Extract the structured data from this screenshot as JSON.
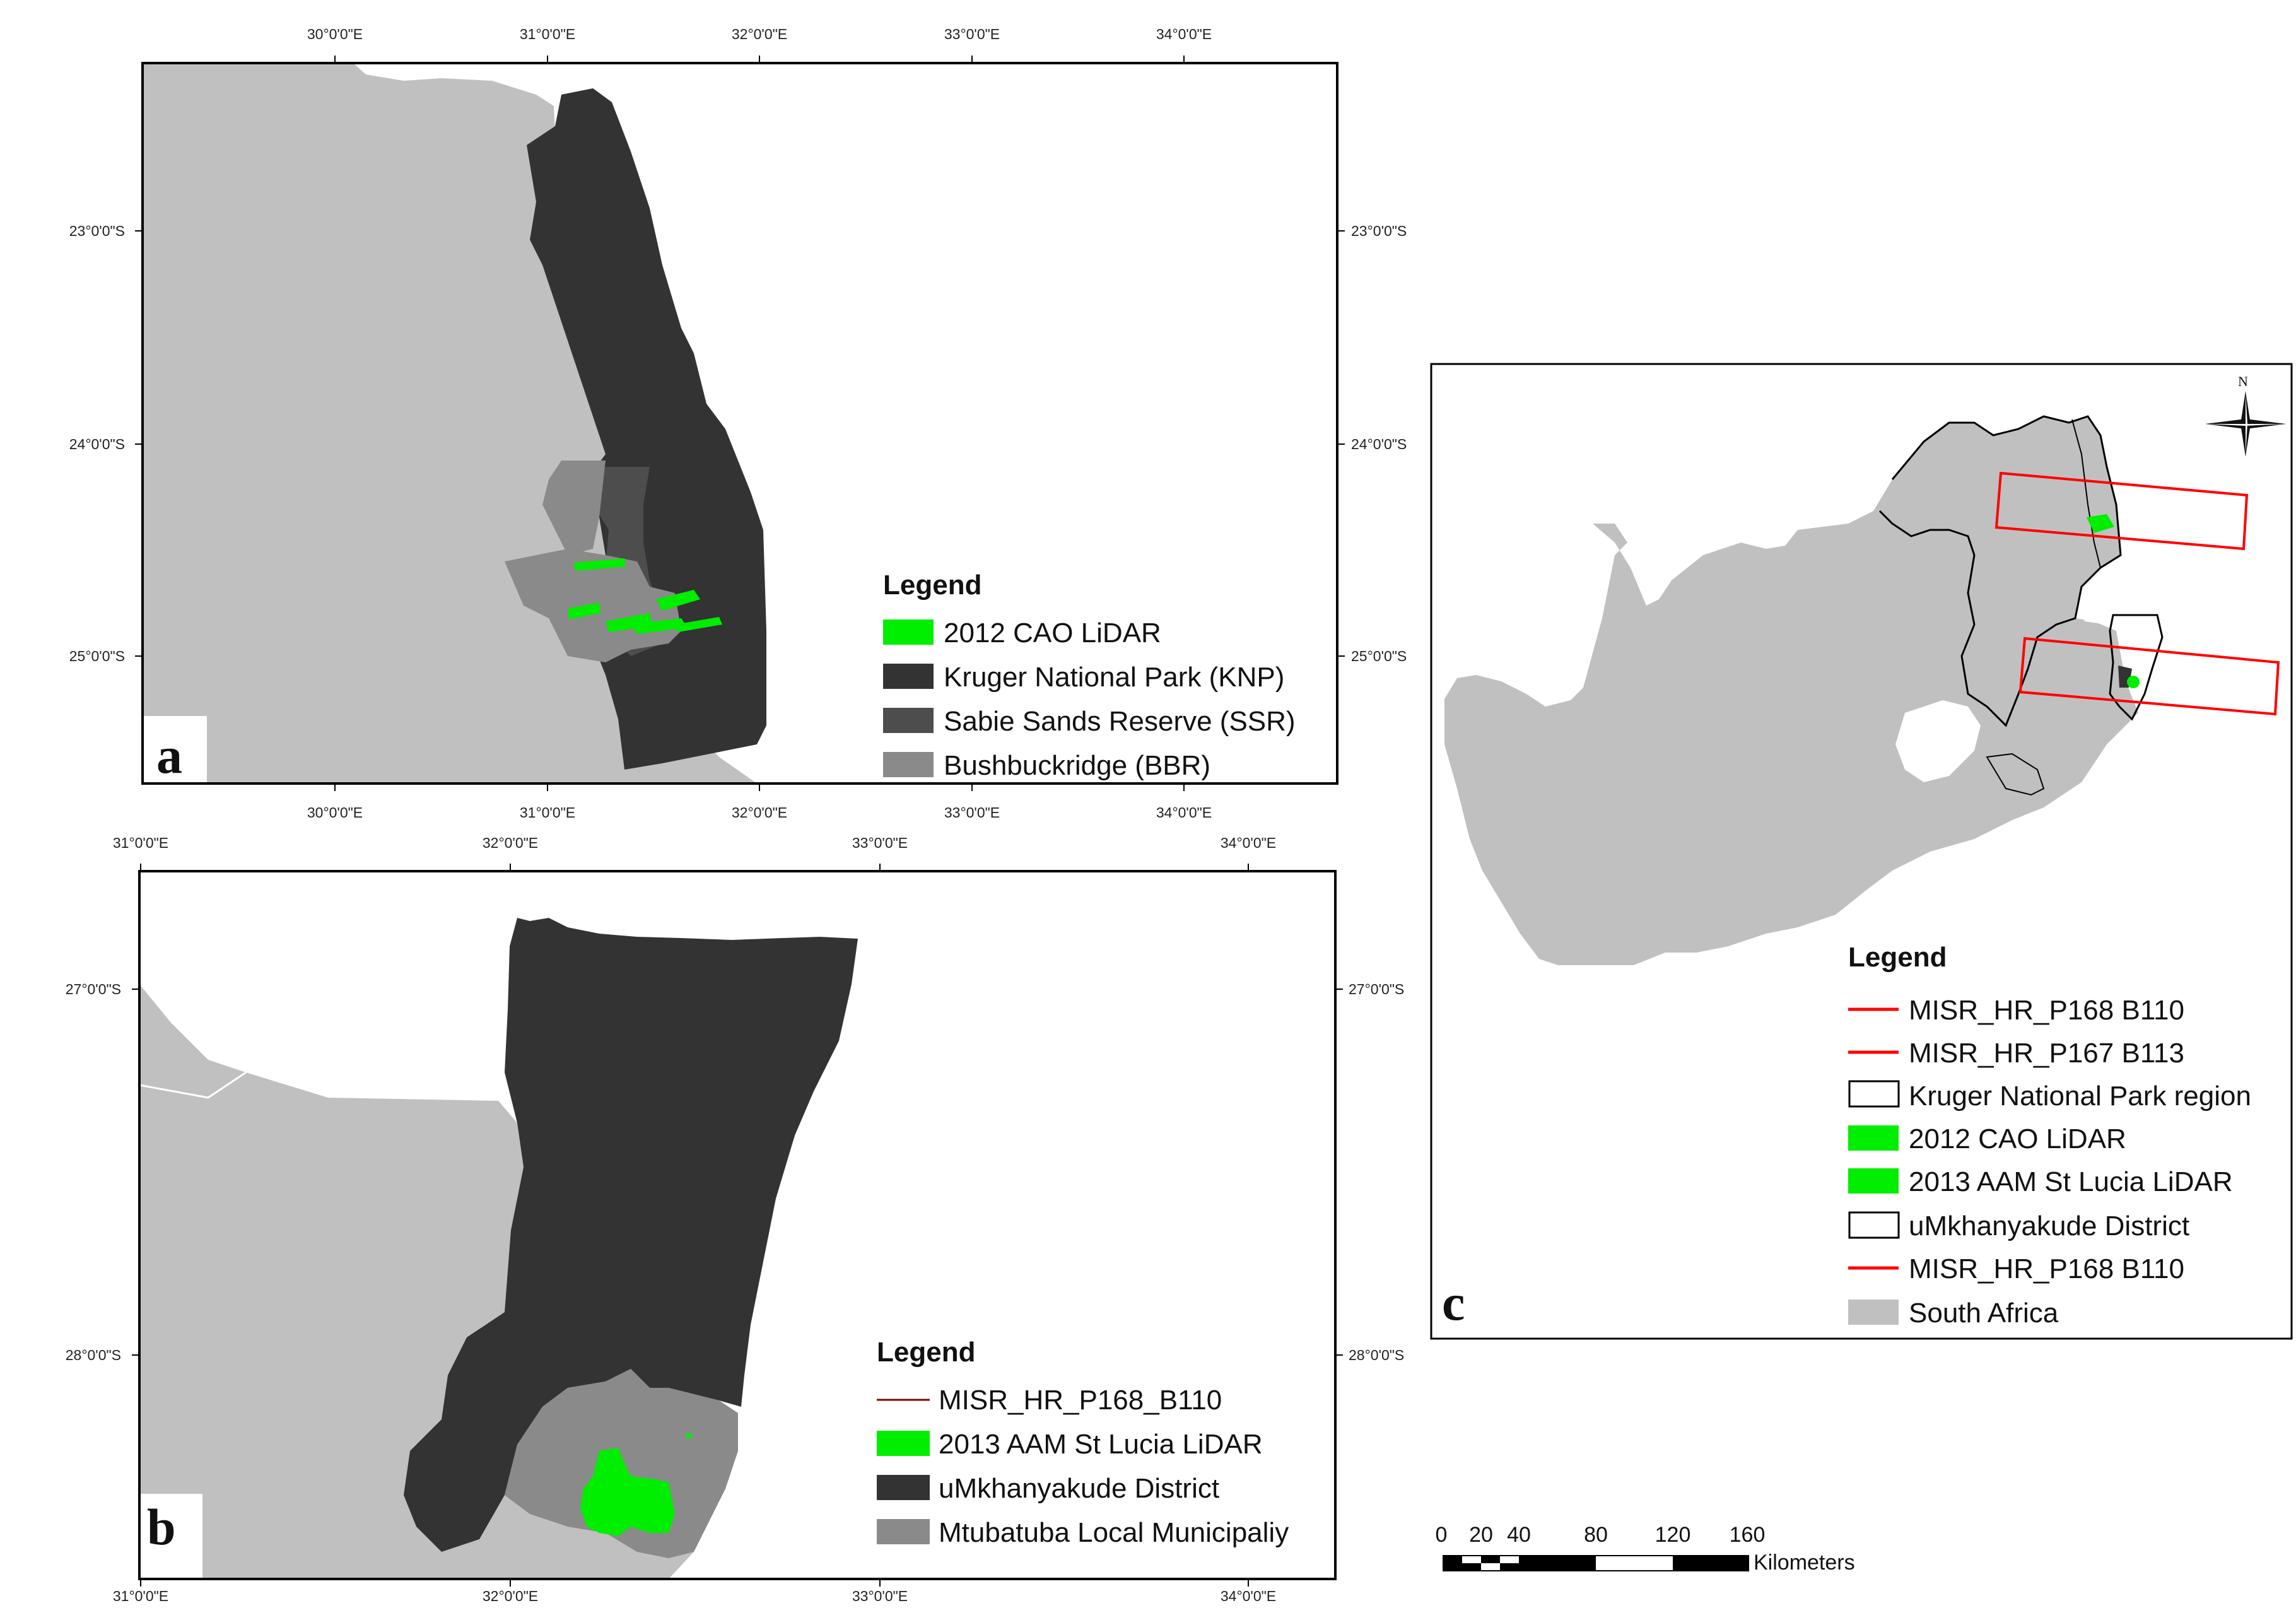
{
  "colors": {
    "land": "#c0c0c0",
    "knp": "#333333",
    "ssr": "#4d4d4d",
    "bbr": "#8a8a8a",
    "umk": "#333333",
    "mtubatuba": "#8a8a8a",
    "lidar": "#00ee00",
    "misr": "#ff0000",
    "misr_b": "#8b0000"
  },
  "panel_a": {
    "letter": "a",
    "top_ticks": [
      "30°0'0\"E",
      "31°0'0\"E",
      "32°0'0\"E",
      "33°0'0\"E",
      "34°0'0\"E"
    ],
    "bottom_ticks": [
      "30°0'0\"E",
      "31°0'0\"E",
      "32°0'0\"E",
      "33°0'0\"E",
      "34°0'0\"E"
    ],
    "left_ticks": [
      "23°0'0\"S",
      "24°0'0\"S",
      "25°0'0\"S"
    ],
    "right_ticks": [
      "23°0'0\"S",
      "24°0'0\"S",
      "25°0'0\"S"
    ],
    "legend": {
      "title": "Legend",
      "items": [
        {
          "label": "2012 CAO LiDAR",
          "symbol": "fill-lidar"
        },
        {
          "label": "Kruger National Park (KNP)",
          "symbol": "fill-knp"
        },
        {
          "label": "Sabie Sands Reserve (SSR)",
          "symbol": "fill-ssr"
        },
        {
          "label": "Bushbuckridge (BBR)",
          "symbol": "fill-bbr"
        }
      ]
    }
  },
  "panel_b": {
    "letter": "b",
    "top_ticks": [
      "31°0'0\"E",
      "32°0'0\"E",
      "33°0'0\"E",
      "34°0'0\"E"
    ],
    "bottom_ticks": [
      "31°0'0\"E",
      "32°0'0\"E",
      "33°0'0\"E",
      "34°0'0\"E"
    ],
    "left_ticks": [
      "27°0'0\"S",
      "28°0'0\"S"
    ],
    "right_ticks": [
      "27°0'0\"S",
      "28°0'0\"S"
    ],
    "legend": {
      "title": "Legend",
      "items": [
        {
          "label": "MISR_HR_P168_B110",
          "symbol": "line-misr-b"
        },
        {
          "label": "2013 AAM St Lucia LiDAR",
          "symbol": "fill-lidar"
        },
        {
          "label": "uMkhanyakude District",
          "symbol": "fill-umk"
        },
        {
          "label": "Mtubatuba Local Municipaliy",
          "symbol": "fill-mtubatuba"
        }
      ]
    }
  },
  "panel_c": {
    "letter": "c",
    "north_label": "N",
    "legend": {
      "title": "Legend",
      "items": [
        {
          "label": "MISR_HR_P168 B110",
          "symbol": "line-misr"
        },
        {
          "label": "MISR_HR_P167 B113",
          "symbol": "line-misr"
        },
        {
          "label": "Kruger National Park region",
          "symbol": "outline"
        },
        {
          "label": "2012 CAO LiDAR",
          "symbol": "fill-lidar"
        },
        {
          "label": "2013 AAM St Lucia LiDAR",
          "symbol": "fill-lidar"
        },
        {
          "label": "uMkhanyakude District",
          "symbol": "outline"
        },
        {
          "label": "MISR_HR_P168 B110",
          "symbol": "line-misr"
        },
        {
          "label": "South Africa",
          "symbol": "fill-land"
        }
      ]
    }
  },
  "scale_bar": {
    "labels": [
      "0",
      "20",
      "40",
      "80",
      "120",
      "160"
    ],
    "unit": "Kilometers"
  }
}
